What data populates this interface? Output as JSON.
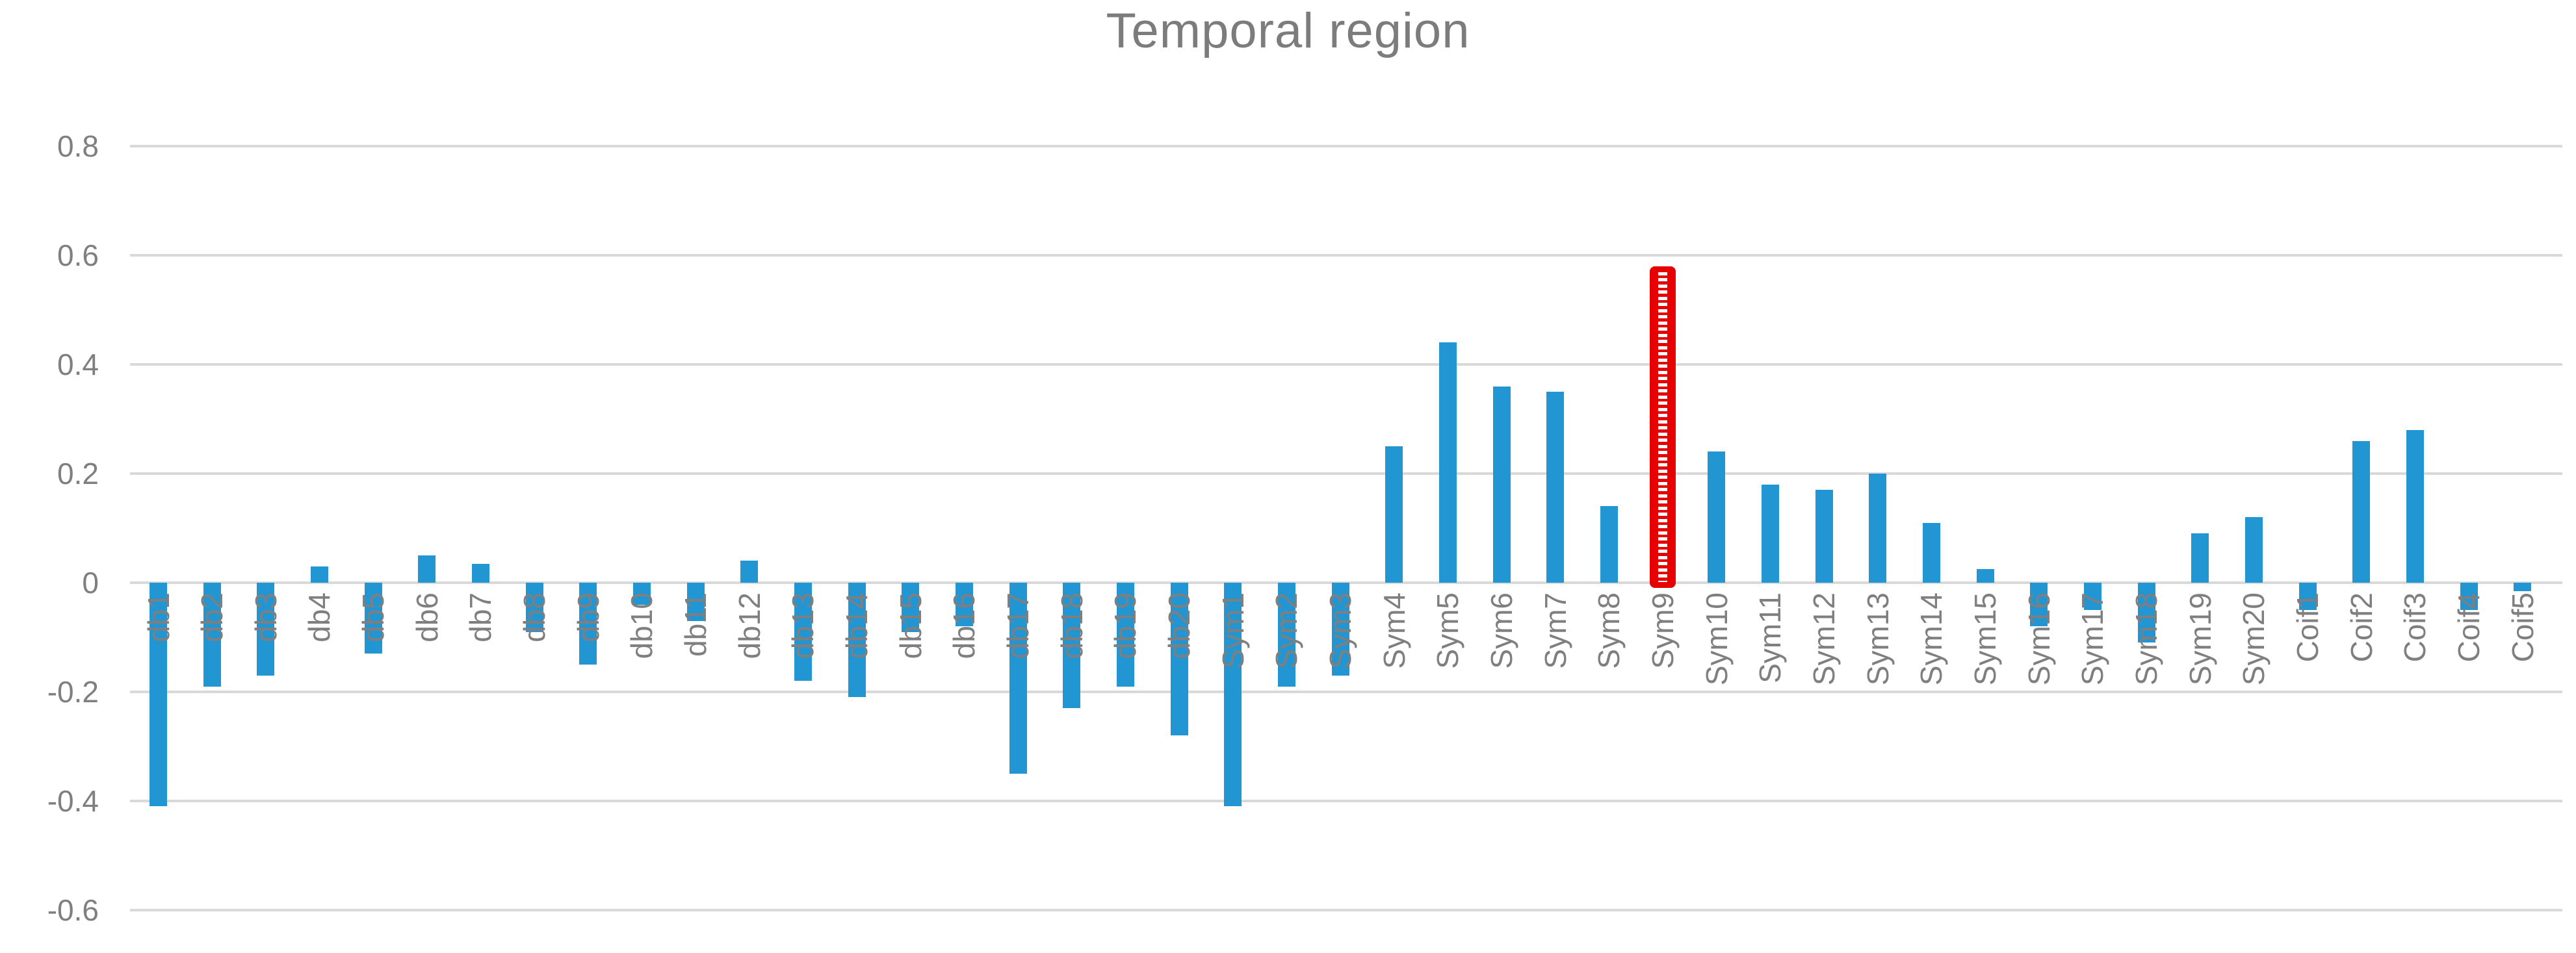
{
  "chart_data": {
    "type": "bar",
    "title": "Temporal region",
    "xlabel": "",
    "ylabel": "",
    "ylim": [
      -0.6,
      0.8
    ],
    "ytick_labels": [
      "0.8",
      "0.6",
      "0.4",
      "0.2",
      "0",
      "-0.2",
      "-0.4",
      "-0.6"
    ],
    "ytick_values": [
      0.8,
      0.6,
      0.4,
      0.2,
      0,
      -0.2,
      -0.4,
      -0.6
    ],
    "grid": true,
    "legend": "none",
    "categories": [
      "db1",
      "db2",
      "db3",
      "db4",
      "db5",
      "db6",
      "db7",
      "db8",
      "db9",
      "db10",
      "db11",
      "db12",
      "db13",
      "db14",
      "db15",
      "db16",
      "db17",
      "db18",
      "db19",
      "db20",
      "Sym1",
      "Sym2",
      "Sym3",
      "Sym4",
      "Sym5",
      "Sym6",
      "Sym7",
      "Sym8",
      "Sym9",
      "Sym10",
      "Sym11",
      "Sym12",
      "Sym13",
      "Sym14",
      "Sym15",
      "Sym16",
      "Sym17",
      "Sym18",
      "Sym19",
      "Sym20",
      "Coif1",
      "Coif2",
      "Coif3",
      "Coif4",
      "Coif5"
    ],
    "values": [
      -0.41,
      -0.19,
      -0.17,
      0.03,
      -0.13,
      0.05,
      0.035,
      -0.09,
      -0.15,
      -0.04,
      -0.07,
      0.04,
      -0.18,
      -0.21,
      -0.09,
      -0.08,
      -0.35,
      -0.23,
      -0.19,
      -0.28,
      -0.41,
      -0.19,
      -0.17,
      0.25,
      0.44,
      0.36,
      0.35,
      0.14,
      0.58,
      0.24,
      0.18,
      0.17,
      0.2,
      0.11,
      0.025,
      -0.08,
      -0.05,
      -0.11,
      0.09,
      0.12,
      -0.05,
      0.26,
      0.28,
      -0.05,
      -0.015
    ],
    "highlight_category": "Sym9",
    "highlight_style": "red hatched pattern bar",
    "bar_color": "#2196d3",
    "highlight_color": "#e60000",
    "gridline_color": "#d9d9d9",
    "axis_label_color": "#7f7f7f",
    "title_color": "#7c7c7c"
  }
}
